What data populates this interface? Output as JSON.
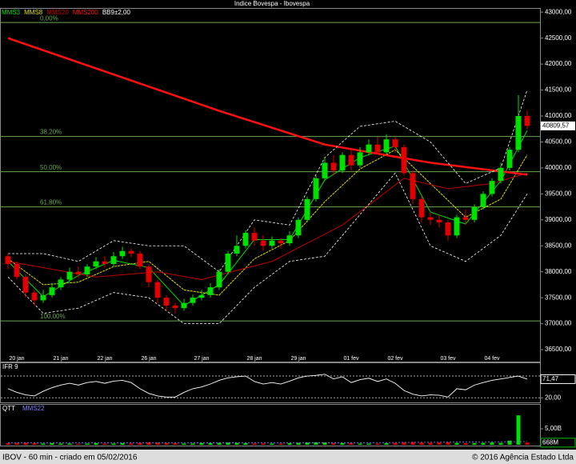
{
  "chart_data": [
    {
      "type": "candlestick",
      "title": "Indice Bovespa - Ibovespa",
      "categories": [
        null,
        "20 jan",
        null,
        null,
        null,
        null,
        "21 jan",
        null,
        null,
        null,
        null,
        "22 jan",
        null,
        null,
        null,
        null,
        "26 jan",
        null,
        null,
        null,
        null,
        null,
        "27 jan",
        null,
        null,
        null,
        null,
        null,
        "28 jan",
        null,
        null,
        null,
        null,
        "29 jan",
        null,
        null,
        null,
        null,
        null,
        "01 fev",
        null,
        null,
        null,
        null,
        "02 fev",
        null,
        null,
        null,
        null,
        null,
        "03 fev",
        null,
        null,
        null,
        null,
        "04 fev",
        null,
        null,
        null,
        null
      ],
      "open": [
        38300,
        38150,
        37900,
        37600,
        37450,
        37550,
        37700,
        37850,
        38000,
        37950,
        38100,
        38200,
        38150,
        38300,
        38400,
        38350,
        38100,
        37800,
        37500,
        37350,
        37300,
        37400,
        37500,
        37550,
        37700,
        38000,
        38350,
        38500,
        38750,
        38600,
        38500,
        38600,
        38550,
        38700,
        39000,
        39400,
        39800,
        40100,
        39950,
        40250,
        40050,
        40300,
        40450,
        40300,
        40550,
        40400,
        39900,
        39400,
        39050,
        39000,
        38950,
        38700,
        39050,
        39000,
        39250,
        39500,
        39750,
        40000,
        40350,
        41000
      ],
      "high": [
        38350,
        38200,
        37950,
        37650,
        37650,
        37780,
        37900,
        38080,
        38100,
        38150,
        38280,
        38300,
        38380,
        38480,
        38450,
        38400,
        38150,
        37850,
        37550,
        37400,
        37480,
        37560,
        37650,
        37780,
        38050,
        38400,
        38700,
        38800,
        38850,
        38700,
        38680,
        38650,
        38780,
        39050,
        39450,
        39850,
        40200,
        40250,
        40300,
        40350,
        40400,
        40550,
        40600,
        40650,
        40600,
        40450,
        39950,
        39450,
        39150,
        39100,
        39000,
        39100,
        39200,
        39300,
        39550,
        39800,
        40100,
        40400,
        41400,
        41100
      ],
      "low": [
        38050,
        37850,
        37500,
        37350,
        37400,
        37500,
        37650,
        37800,
        37880,
        37900,
        38050,
        38080,
        38100,
        38250,
        38280,
        38050,
        37700,
        37400,
        37250,
        37200,
        37250,
        37350,
        37450,
        37500,
        37650,
        37950,
        38300,
        38450,
        38500,
        38400,
        38450,
        38450,
        38500,
        38650,
        38950,
        39350,
        39750,
        39850,
        39900,
        39950,
        40000,
        40250,
        40250,
        40250,
        40300,
        39850,
        39300,
        38950,
        38900,
        38850,
        38600,
        38650,
        38900,
        38950,
        39200,
        39450,
        39700,
        39950,
        40300,
        40750
      ],
      "close": [
        38150,
        37900,
        37600,
        37450,
        37550,
        37700,
        37850,
        38000,
        37950,
        38100,
        38200,
        38150,
        38300,
        38400,
        38350,
        38100,
        37800,
        37500,
        37350,
        37300,
        37400,
        37500,
        37550,
        37700,
        38000,
        38350,
        38500,
        38750,
        38600,
        38500,
        38600,
        38550,
        38700,
        39000,
        39400,
        39800,
        40100,
        39950,
        40250,
        40050,
        40300,
        40450,
        40300,
        40550,
        40400,
        39900,
        39400,
        39050,
        39000,
        38950,
        38700,
        39050,
        39000,
        39250,
        39500,
        39750,
        40000,
        40350,
        41000,
        40809.57
      ],
      "up_color": "#00e000",
      "down_color": "#e00000",
      "ylim": [
        36270,
        43080
      ],
      "yticks": [
        {
          "value": 36500,
          "label": "36500,00"
        },
        {
          "value": 37000,
          "label": "37000,00"
        },
        {
          "value": 37500,
          "label": "37500,00"
        },
        {
          "value": 38000,
          "label": "38000,00"
        },
        {
          "value": 38500,
          "label": "38500,00"
        },
        {
          "value": 39000,
          "label": "39000,00"
        },
        {
          "value": 39500,
          "label": "39500,00"
        },
        {
          "value": 40000,
          "label": "40000,00"
        },
        {
          "value": 40500,
          "label": "40500,00"
        },
        {
          "value": 41000,
          "label": "41000,00"
        },
        {
          "value": 41500,
          "label": "41500,00"
        },
        {
          "value": 42000,
          "label": "42000,00"
        },
        {
          "value": 42500,
          "label": "42500,00"
        },
        {
          "value": 43000,
          "label": "43000,00"
        }
      ],
      "last_value": {
        "value": 40809.57,
        "label": "40809,57"
      },
      "level_color": "#6aa84f",
      "levels": [
        {
          "value": 42800,
          "label": "0,00%"
        },
        {
          "value": 40605,
          "label": "38,20%"
        },
        {
          "value": 39927,
          "label": "50,00%"
        },
        {
          "value": 39250,
          "label": "61,80%"
        },
        {
          "value": 37054,
          "label": "100,00%"
        }
      ],
      "series": [
        {
          "name": "MMS3",
          "color": "#00e000",
          "x": [
            0,
            4,
            8,
            12,
            16,
            20,
            24,
            28,
            32,
            36,
            40,
            44,
            48,
            52,
            56,
            59
          ],
          "values": [
            38200,
            37520,
            37930,
            38220,
            38080,
            37350,
            37750,
            38620,
            38620,
            39770,
            40200,
            40420,
            39150,
            38920,
            39750,
            40720
          ]
        },
        {
          "name": "MMS8",
          "color": "#e0e000",
          "x": [
            0,
            4,
            8,
            12,
            16,
            20,
            24,
            28,
            32,
            36,
            40,
            44,
            48,
            52,
            56,
            59
          ],
          "values": [
            38250,
            37750,
            37800,
            38100,
            38200,
            37650,
            37550,
            38250,
            38600,
            39350,
            39980,
            40350,
            39700,
            39050,
            39400,
            40250
          ]
        },
        {
          "name": "MMS20",
          "color": "#c00000",
          "x": [
            0,
            10,
            17,
            22,
            30,
            38,
            45,
            50,
            55,
            59
          ],
          "values": [
            38200,
            37900,
            38000,
            37850,
            38200,
            38900,
            39800,
            39600,
            39700,
            39900
          ]
        },
        {
          "name": "MMS200",
          "color": "#ff1010",
          "x": [
            0,
            12,
            24,
            36,
            48,
            59
          ],
          "values": [
            42500,
            41800,
            41100,
            40450,
            40100,
            39870
          ]
        },
        {
          "name": "BB9±2,00",
          "color": "#ffffff",
          "x": [
            0,
            4,
            8,
            12,
            16,
            20,
            24,
            28,
            32,
            36,
            40,
            44,
            48,
            52,
            56,
            59
          ],
          "upper": [
            38350,
            38350,
            38200,
            38600,
            38500,
            38500,
            38000,
            39000,
            38900,
            40200,
            40800,
            40900,
            40500,
            39700,
            40000,
            41500
          ],
          "lower": [
            37900,
            37200,
            37300,
            37600,
            37500,
            37000,
            37000,
            37700,
            38200,
            38300,
            39100,
            39900,
            38500,
            38200,
            38700,
            39500
          ]
        }
      ]
    },
    {
      "type": "line",
      "title": "IFR 9",
      "color": "#ffffff",
      "values": [
        45,
        35,
        28,
        25,
        38,
        48,
        55,
        60,
        55,
        62,
        65,
        60,
        66,
        68,
        62,
        45,
        32,
        25,
        22,
        22,
        35,
        45,
        50,
        58,
        68,
        75,
        78,
        80,
        65,
        58,
        62,
        58,
        66,
        75,
        80,
        82,
        85,
        72,
        78,
        62,
        70,
        74,
        65,
        72,
        60,
        40,
        30,
        25,
        28,
        27,
        22,
        45,
        42,
        55,
        62,
        68,
        72,
        76,
        80,
        71.47
      ],
      "ylim": [
        5,
        100
      ],
      "yticks": [
        {
          "value": 20,
          "label": "20,00"
        }
      ],
      "levels": [
        20,
        80
      ],
      "last_value": {
        "value": 71.47,
        "label": "71,47"
      }
    },
    {
      "type": "bar",
      "title": "QTT",
      "up_color": "#00e000",
      "down_color": "#e00000",
      "values": [
        0.5,
        0.6,
        0.7,
        0.5,
        0.4,
        0.5,
        0.4,
        0.4,
        0.3,
        0.4,
        0.5,
        0.4,
        0.4,
        0.5,
        0.4,
        0.6,
        0.8,
        0.7,
        0.6,
        0.5,
        0.4,
        0.4,
        0.5,
        0.5,
        0.6,
        0.7,
        0.6,
        0.5,
        0.4,
        0.4,
        0.4,
        0.4,
        0.5,
        0.6,
        0.7,
        0.8,
        0.7,
        0.5,
        0.5,
        0.5,
        0.4,
        0.4,
        0.4,
        0.5,
        0.6,
        0.8,
        0.9,
        0.7,
        0.6,
        0.7,
        0.8,
        0.6,
        0.5,
        0.5,
        0.6,
        0.7,
        0.6,
        1.3,
        9.2,
        0.668
      ],
      "series": [
        {
          "name": "MMS22",
          "color": "#8080ff",
          "x": [
            0,
            20,
            40,
            59
          ],
          "values": [
            0.6,
            0.6,
            0.65,
            1.0
          ]
        }
      ],
      "ylim": [
        0,
        10
      ],
      "yticks": [
        {
          "value": 5,
          "label": "5,00B"
        }
      ],
      "last_value": {
        "value": 0.668,
        "label": "668M"
      }
    }
  ],
  "footer": {
    "left": "IBOV - 60 min - criado em 05/02/2016",
    "right": "© 2016 Agência Estado Ltda"
  }
}
